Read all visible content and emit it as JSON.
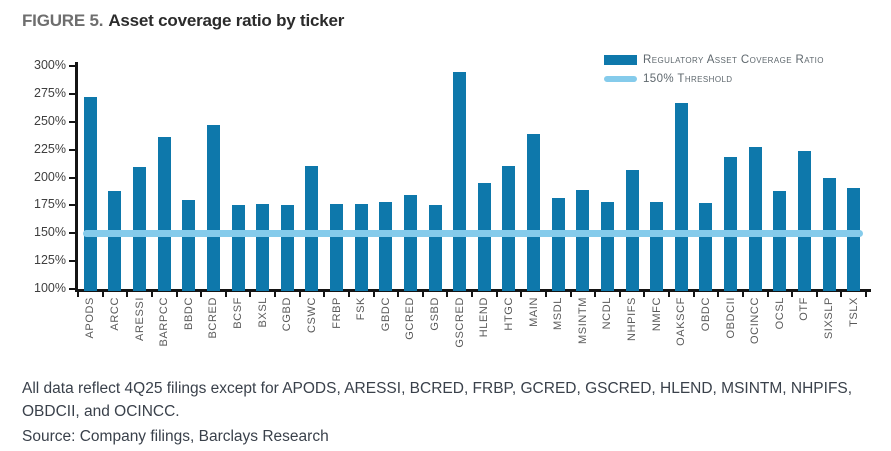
{
  "figure": {
    "label": "FIGURE 5.",
    "title": "Asset coverage ratio by ticker"
  },
  "chart_data": {
    "type": "bar",
    "series_name": "Regulatory Asset Coverage Ratio",
    "categories": [
      "APODS",
      "ARCC",
      "ARESSI",
      "BARPCC",
      "BBDC",
      "BCRED",
      "BCSF",
      "BXSL",
      "CGBD",
      "CSWC",
      "FRBP",
      "FSK",
      "GBDC",
      "GCRED",
      "GSBD",
      "GSCRED",
      "HLEND",
      "HTGC",
      "MAIN",
      "MSDL",
      "MSINTM",
      "NCDL",
      "NHPIFS",
      "NMFC",
      "OAKSCF",
      "OBDC",
      "OBDCII",
      "OCINCC",
      "OCSL",
      "OTF",
      "SIXSLP",
      "TSLX"
    ],
    "values": [
      272,
      188,
      209,
      236,
      180,
      247,
      175,
      176,
      175,
      210,
      176,
      176,
      178,
      184,
      175,
      295,
      195,
      210,
      239,
      182,
      189,
      178,
      207,
      178,
      267,
      177,
      218,
      227,
      188,
      224,
      200,
      191
    ],
    "values_unit": "%",
    "threshold": {
      "label": "150% Threshold",
      "value": 150
    },
    "title": "Asset coverage ratio by ticker",
    "xlabel": "",
    "ylabel": "",
    "ylim": [
      100,
      300
    ],
    "ytick_step": 25,
    "ytick_format": "percent",
    "grid": false,
    "legend_position": "top-right",
    "bar_color": "#0e78ab",
    "threshold_color": "#85cbeb"
  },
  "footnote": {
    "text": "All data reflect 4Q25 filings except for APODS, ARESSI, BCRED, FRBP, GCRED, GSCRED, HLEND, MSINTM, NHPIFS, OBDCII, and OCINCC.",
    "source": "Source: Company filings, Barclays Research"
  }
}
